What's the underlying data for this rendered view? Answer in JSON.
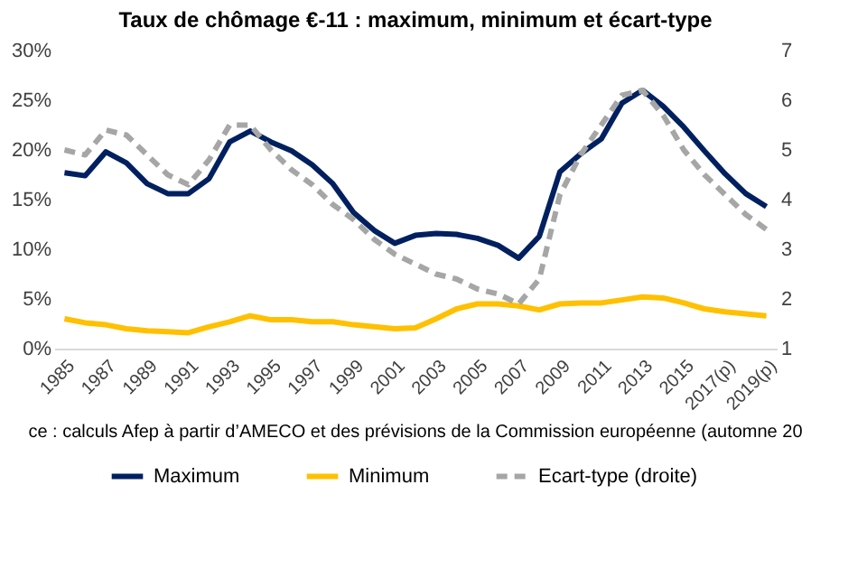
{
  "chart_data": {
    "type": "line",
    "title": "Taux de chômage €-11 : maximum, minimum et écart-type",
    "categories": [
      "1985",
      null,
      "1987",
      null,
      "1989",
      null,
      "1991",
      null,
      "1993",
      null,
      "1995",
      null,
      "1997",
      null,
      "1999",
      null,
      "2001",
      null,
      "2003",
      null,
      "2005",
      null,
      "2007",
      null,
      "2009",
      null,
      "2011",
      null,
      "2013",
      null,
      "2015",
      null,
      "2017(p)",
      null,
      "2019(p)"
    ],
    "series": [
      {
        "name": "Maximum",
        "color": "#002060",
        "line_style": "solid",
        "values": [
          17.7,
          17.4,
          19.8,
          18.7,
          16.6,
          15.6,
          15.6,
          17.1,
          20.8,
          21.9,
          20.8,
          19.9,
          18.5,
          16.6,
          13.7,
          11.9,
          10.6,
          11.4,
          11.6,
          11.5,
          11.1,
          10.4,
          9.1,
          11.3,
          17.8,
          19.6,
          21.1,
          24.7,
          26.0,
          24.4,
          22.3,
          19.9,
          17.6,
          15.6,
          14.3
        ]
      },
      {
        "name": "Minimum",
        "color": "#ffc000",
        "line_style": "solid",
        "values": [
          3.0,
          2.6,
          2.4,
          2.0,
          1.8,
          1.7,
          1.6,
          2.2,
          2.7,
          3.3,
          2.9,
          2.9,
          2.7,
          2.7,
          2.4,
          2.2,
          2.0,
          2.1,
          3.0,
          4.0,
          4.5,
          4.5,
          4.3,
          3.9,
          4.5,
          4.6,
          4.6,
          4.9,
          5.2,
          5.1,
          4.6,
          4.0,
          3.7,
          3.5,
          3.3
        ]
      },
      {
        "name": "Ecart-type (droite)",
        "color": "#a6a6a6",
        "line_style": "dashed",
        "axis": "y2",
        "values": [
          5.0,
          4.9,
          5.4,
          5.3,
          4.9,
          4.5,
          4.3,
          4.8,
          5.5,
          5.5,
          5.0,
          4.6,
          4.3,
          3.9,
          3.6,
          3.2,
          2.9,
          2.7,
          2.5,
          2.4,
          2.2,
          2.1,
          1.9,
          2.4,
          4.1,
          4.9,
          5.5,
          6.1,
          6.2,
          5.7,
          5.0,
          4.5,
          4.1,
          3.7,
          3.4
        ]
      }
    ],
    "ylim": [
      0,
      30
    ],
    "yticks": [
      {
        "value": 0,
        "label": "0%"
      },
      {
        "value": 5,
        "label": "5%"
      },
      {
        "value": 10,
        "label": "10%"
      },
      {
        "value": 15,
        "label": "15%"
      },
      {
        "value": 20,
        "label": "20%"
      },
      {
        "value": 25,
        "label": "25%"
      },
      {
        "value": 30,
        "label": "30%"
      }
    ],
    "y2lim": [
      1,
      7
    ],
    "y2ticks": [
      1,
      2,
      3,
      4,
      5,
      6,
      7
    ],
    "grid": false,
    "legend": "bottom",
    "annotations": [
      "ce : calculs Afep à partir d’AMECO et des prévisions de la Commission européenne (automne 20"
    ]
  }
}
